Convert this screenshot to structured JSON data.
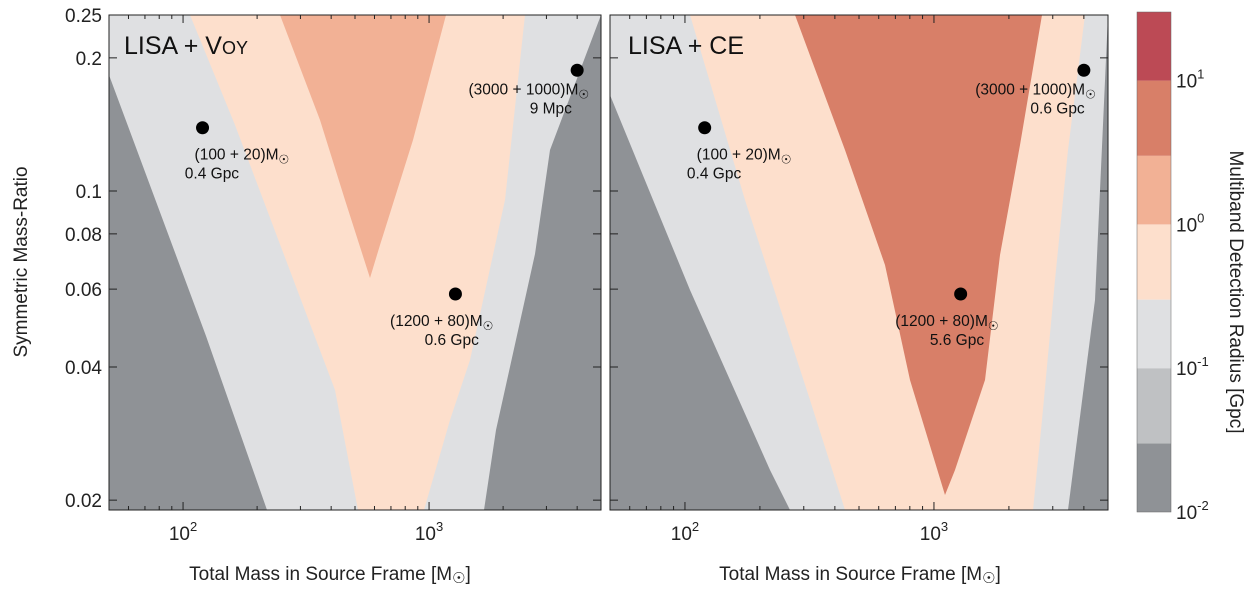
{
  "chart_data": {
    "type": "contour",
    "ylabel": "Symmetric Mass-Ratio",
    "yticks": [
      {
        "value": 0.25,
        "label": "0.25"
      },
      {
        "value": 0.2,
        "label": "0.2"
      },
      {
        "value": 0.1,
        "label": "0.1"
      },
      {
        "value": 0.08,
        "label": "0.08"
      },
      {
        "value": 0.06,
        "label": "0.06"
      },
      {
        "value": 0.04,
        "label": "0.04"
      },
      {
        "value": 0.02,
        "label": "0.02"
      }
    ],
    "xscale": "log",
    "yscale": "log",
    "xlim": [
      50,
      5000
    ],
    "ylim": [
      0.019,
      0.25
    ],
    "colorbar": {
      "label": "Multiband Detection Radius [Gpc]",
      "scale": "log",
      "levels": [
        0.01,
        0.03,
        0.1,
        0.3,
        1,
        3,
        10,
        30
      ],
      "colors": [
        "#8f9296",
        "#bfc1c3",
        "#dfe0e2",
        "#fddfcc",
        "#f2b195",
        "#d87f68",
        "#bc4a55"
      ],
      "ticks": [
        {
          "value": 0.01,
          "base": "10",
          "exp": "-2"
        },
        {
          "value": 0.1,
          "base": "10",
          "exp": "-1"
        },
        {
          "value": 1,
          "base": "10",
          "exp": "0"
        },
        {
          "value": 10,
          "base": "10",
          "exp": "1"
        }
      ]
    },
    "panels": [
      {
        "title": "LISA + Voy",
        "title_main": "LISA + V",
        "title_small": "OY",
        "xlabel": "Total Mass in Source Frame [M",
        "xlabel_unit": "☉",
        "xlabel_close": "]",
        "xticks": [
          {
            "value": 100,
            "base": "10",
            "exp": "2"
          },
          {
            "value": 1000,
            "base": "10",
            "exp": "3"
          }
        ],
        "points": [
          {
            "mass": 120,
            "eta": 0.139,
            "label": "(100 + 20)M",
            "sun": "☉",
            "distance": "0.4 Gpc"
          },
          {
            "mass": 1280,
            "eta": 0.0585,
            "label": "(1200 + 80)M",
            "sun": "☉",
            "distance": "0.6 Gpc"
          },
          {
            "mass": 4000,
            "eta": 0.1875,
            "label": "(3000 + 1000)M",
            "sun": "☉",
            "distance": "9 Mpc"
          }
        ]
      },
      {
        "title": "LISA + CE",
        "title_main": "LISA + CE",
        "title_small": "",
        "xlabel": "Total Mass in Source Frame [M",
        "xlabel_unit": "☉",
        "xlabel_close": "]",
        "xticks": [
          {
            "value": 100,
            "base": "10",
            "exp": "2"
          },
          {
            "value": 1000,
            "base": "10",
            "exp": "3"
          }
        ],
        "points": [
          {
            "mass": 120,
            "eta": 0.139,
            "label": "(100 + 20)M",
            "sun": "☉",
            "distance": "0.4 Gpc"
          },
          {
            "mass": 1280,
            "eta": 0.0585,
            "label": "(1200 + 80)M",
            "sun": "☉",
            "distance": "5.6 Gpc"
          },
          {
            "mass": 4000,
            "eta": 0.1875,
            "label": "(3000 + 1000)M",
            "sun": "☉",
            "distance": "0.6 Gpc"
          }
        ]
      }
    ]
  }
}
